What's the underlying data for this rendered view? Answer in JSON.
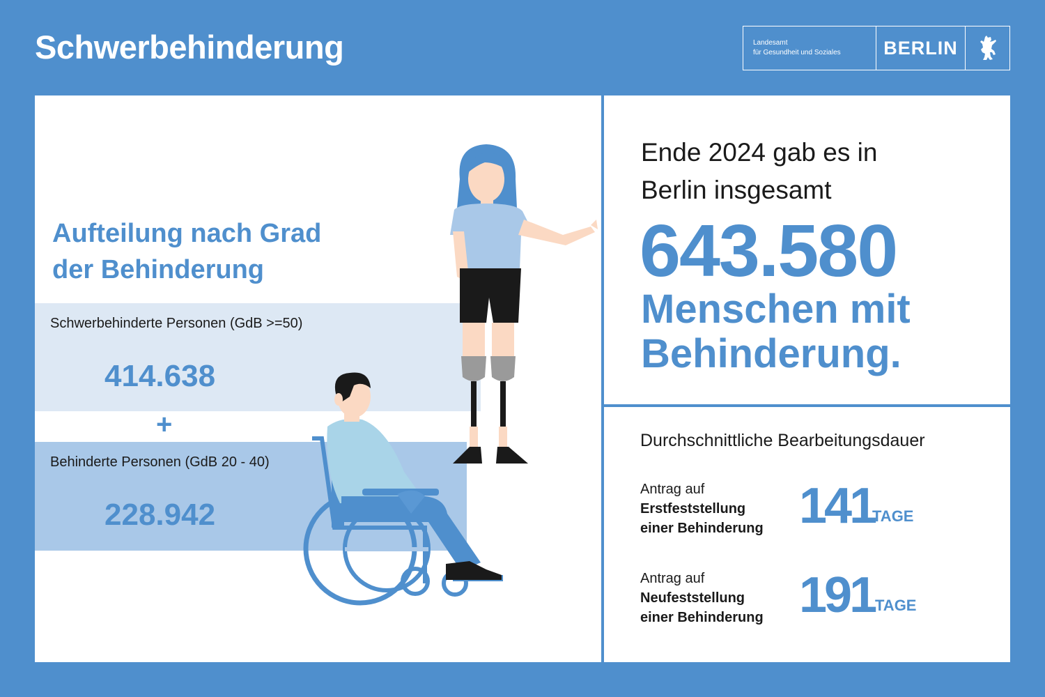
{
  "header": {
    "title": "Schwerbehinderung",
    "logo": {
      "org_line1": "Landesamt",
      "org_line2": "für Gesundheit und Soziales",
      "city": "BERLIN",
      "emblem": "berlin-bear-icon"
    }
  },
  "breakdown": {
    "heading_line1": "Aufteilung nach Grad",
    "heading_line2": "der Behinderung",
    "groups": [
      {
        "label": "Schwerbehinderte Personen (GdB >=50)",
        "value": "414.638"
      },
      {
        "label": "Behinderte Personen (GdB 20 - 40)",
        "value": "228.942"
      }
    ],
    "operator": "+"
  },
  "summary": {
    "intro_line1": "Ende 2024 gab es in",
    "intro_line2": "Berlin insgesamt",
    "total": "643.580",
    "label_line1": "Menschen mit",
    "label_line2": "Behinderung."
  },
  "durations": {
    "title": "Durchschnittliche Bearbeitungsdauer",
    "unit": "TAGE",
    "items": [
      {
        "line1": "Antrag auf",
        "line2": "Erstfeststellung",
        "line3": "einer Behinderung",
        "days": "141"
      },
      {
        "line1": "Antrag auf",
        "line2": "Neufeststellung",
        "line3": "einer Behinderung",
        "days": "191"
      }
    ]
  },
  "colors": {
    "background": "#4f8fcd",
    "accent": "#4f8fcd",
    "band_light": "#dde8f4",
    "band_mid": "#a9c8e8"
  }
}
